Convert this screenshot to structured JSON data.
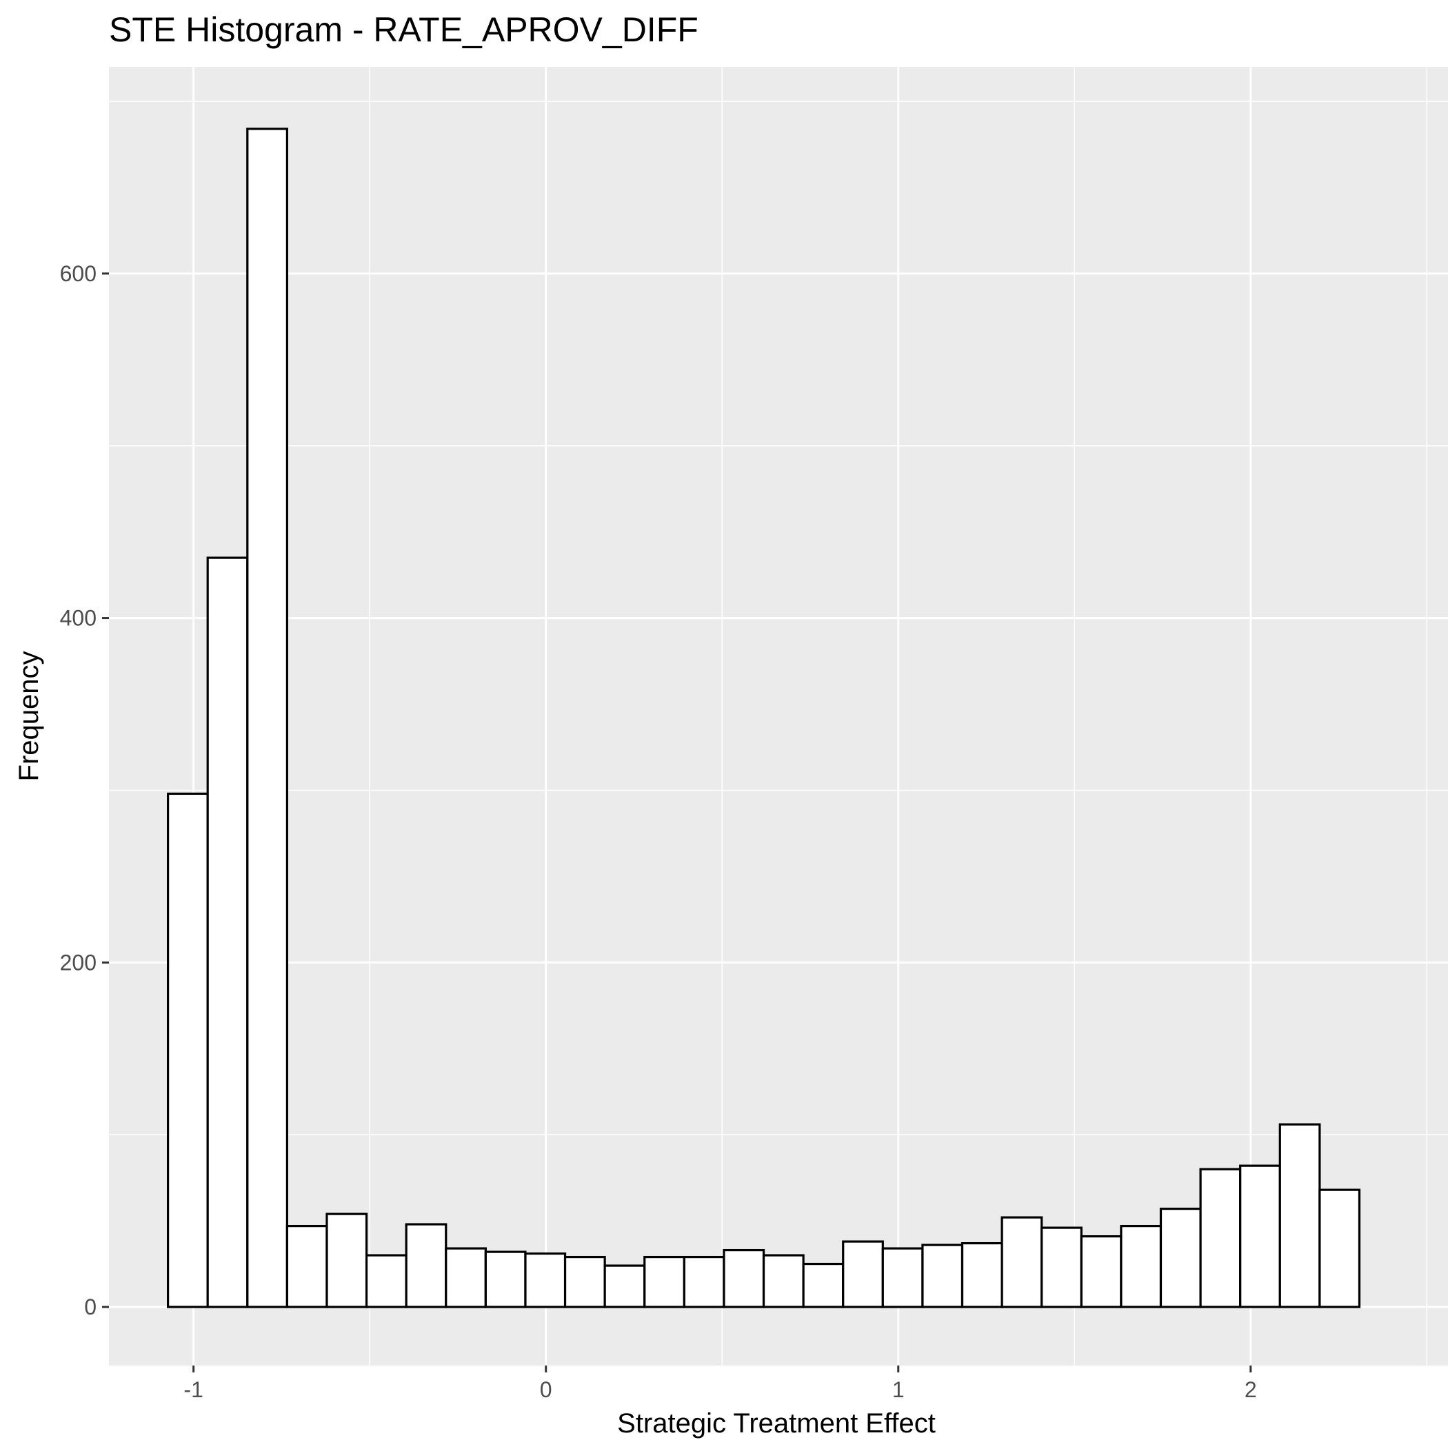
{
  "chart_data": {
    "type": "bar",
    "title": "STE Histogram -  RATE_APROV_DIFF",
    "xlabel": "Strategic Treatment Effect",
    "ylabel": "Frequency",
    "x_ticks": [
      -1,
      0,
      1,
      2
    ],
    "y_ticks": [
      0,
      200,
      400,
      600
    ],
    "xlim": [
      -1.24,
      2.56
    ],
    "ylim": [
      -34,
      720
    ],
    "grid": true,
    "legend": "none",
    "bin_start": -1.0725,
    "bin_width": 0.1127,
    "values": [
      298,
      435,
      684,
      47,
      54,
      30,
      48,
      34,
      32,
      31,
      29,
      24,
      29,
      29,
      33,
      30,
      25,
      38,
      34,
      36,
      37,
      52,
      46,
      41,
      47,
      57,
      80,
      82,
      106,
      68
    ],
    "colors": {
      "panel_background": "#ebebeb",
      "grid_line": "#ffffff",
      "bar_fill": "#ffffff",
      "bar_stroke": "#000000",
      "tick_mark": "#333333"
    }
  }
}
